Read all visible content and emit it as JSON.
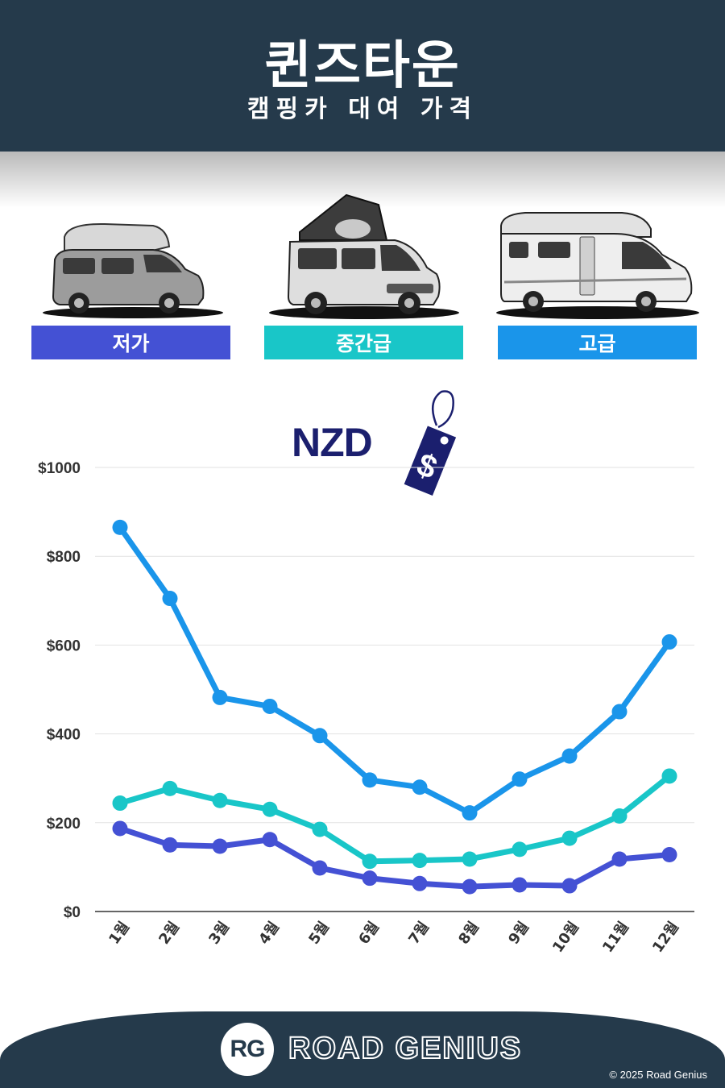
{
  "header": {
    "title": "퀸즈타운",
    "subtitle": "캠핑카 대여 가격"
  },
  "categories": [
    {
      "label": "저가",
      "color": "#4451d4",
      "icon": "compact-campervan-icon"
    },
    {
      "label": "중간급",
      "color": "#19c6c8",
      "icon": "popup-campervan-icon"
    },
    {
      "label": "고급",
      "color": "#1a95ea",
      "icon": "motorhome-icon"
    }
  ],
  "currency": {
    "label": "NZD",
    "tag_symbol": "$",
    "icon": "price-tag-icon"
  },
  "chart_data": {
    "type": "line",
    "categories": [
      "1월",
      "2월",
      "3월",
      "4월",
      "5월",
      "6월",
      "7월",
      "8월",
      "9월",
      "10월",
      "11월",
      "12월"
    ],
    "ylim": [
      0,
      1000
    ],
    "yticks": [
      "$0",
      "$200",
      "$400",
      "$600",
      "$800",
      "$1000"
    ],
    "grid": true,
    "series": [
      {
        "name": "고급",
        "color": "#1a95ea",
        "values": [
          865,
          705,
          482,
          462,
          396,
          296,
          280,
          222,
          298,
          350,
          450,
          607
        ]
      },
      {
        "name": "중간급",
        "color": "#19c6c8",
        "values": [
          244,
          277,
          250,
          230,
          185,
          113,
          115,
          118,
          140,
          165,
          215,
          305
        ]
      },
      {
        "name": "저가",
        "color": "#4451d4",
        "values": [
          187,
          150,
          147,
          162,
          98,
          75,
          63,
          56,
          60,
          58,
          118,
          128
        ]
      }
    ]
  },
  "footer": {
    "logo_text": "RG",
    "brand": "ROAD GENIUS",
    "copyright": "© 2025 Road Genius"
  }
}
